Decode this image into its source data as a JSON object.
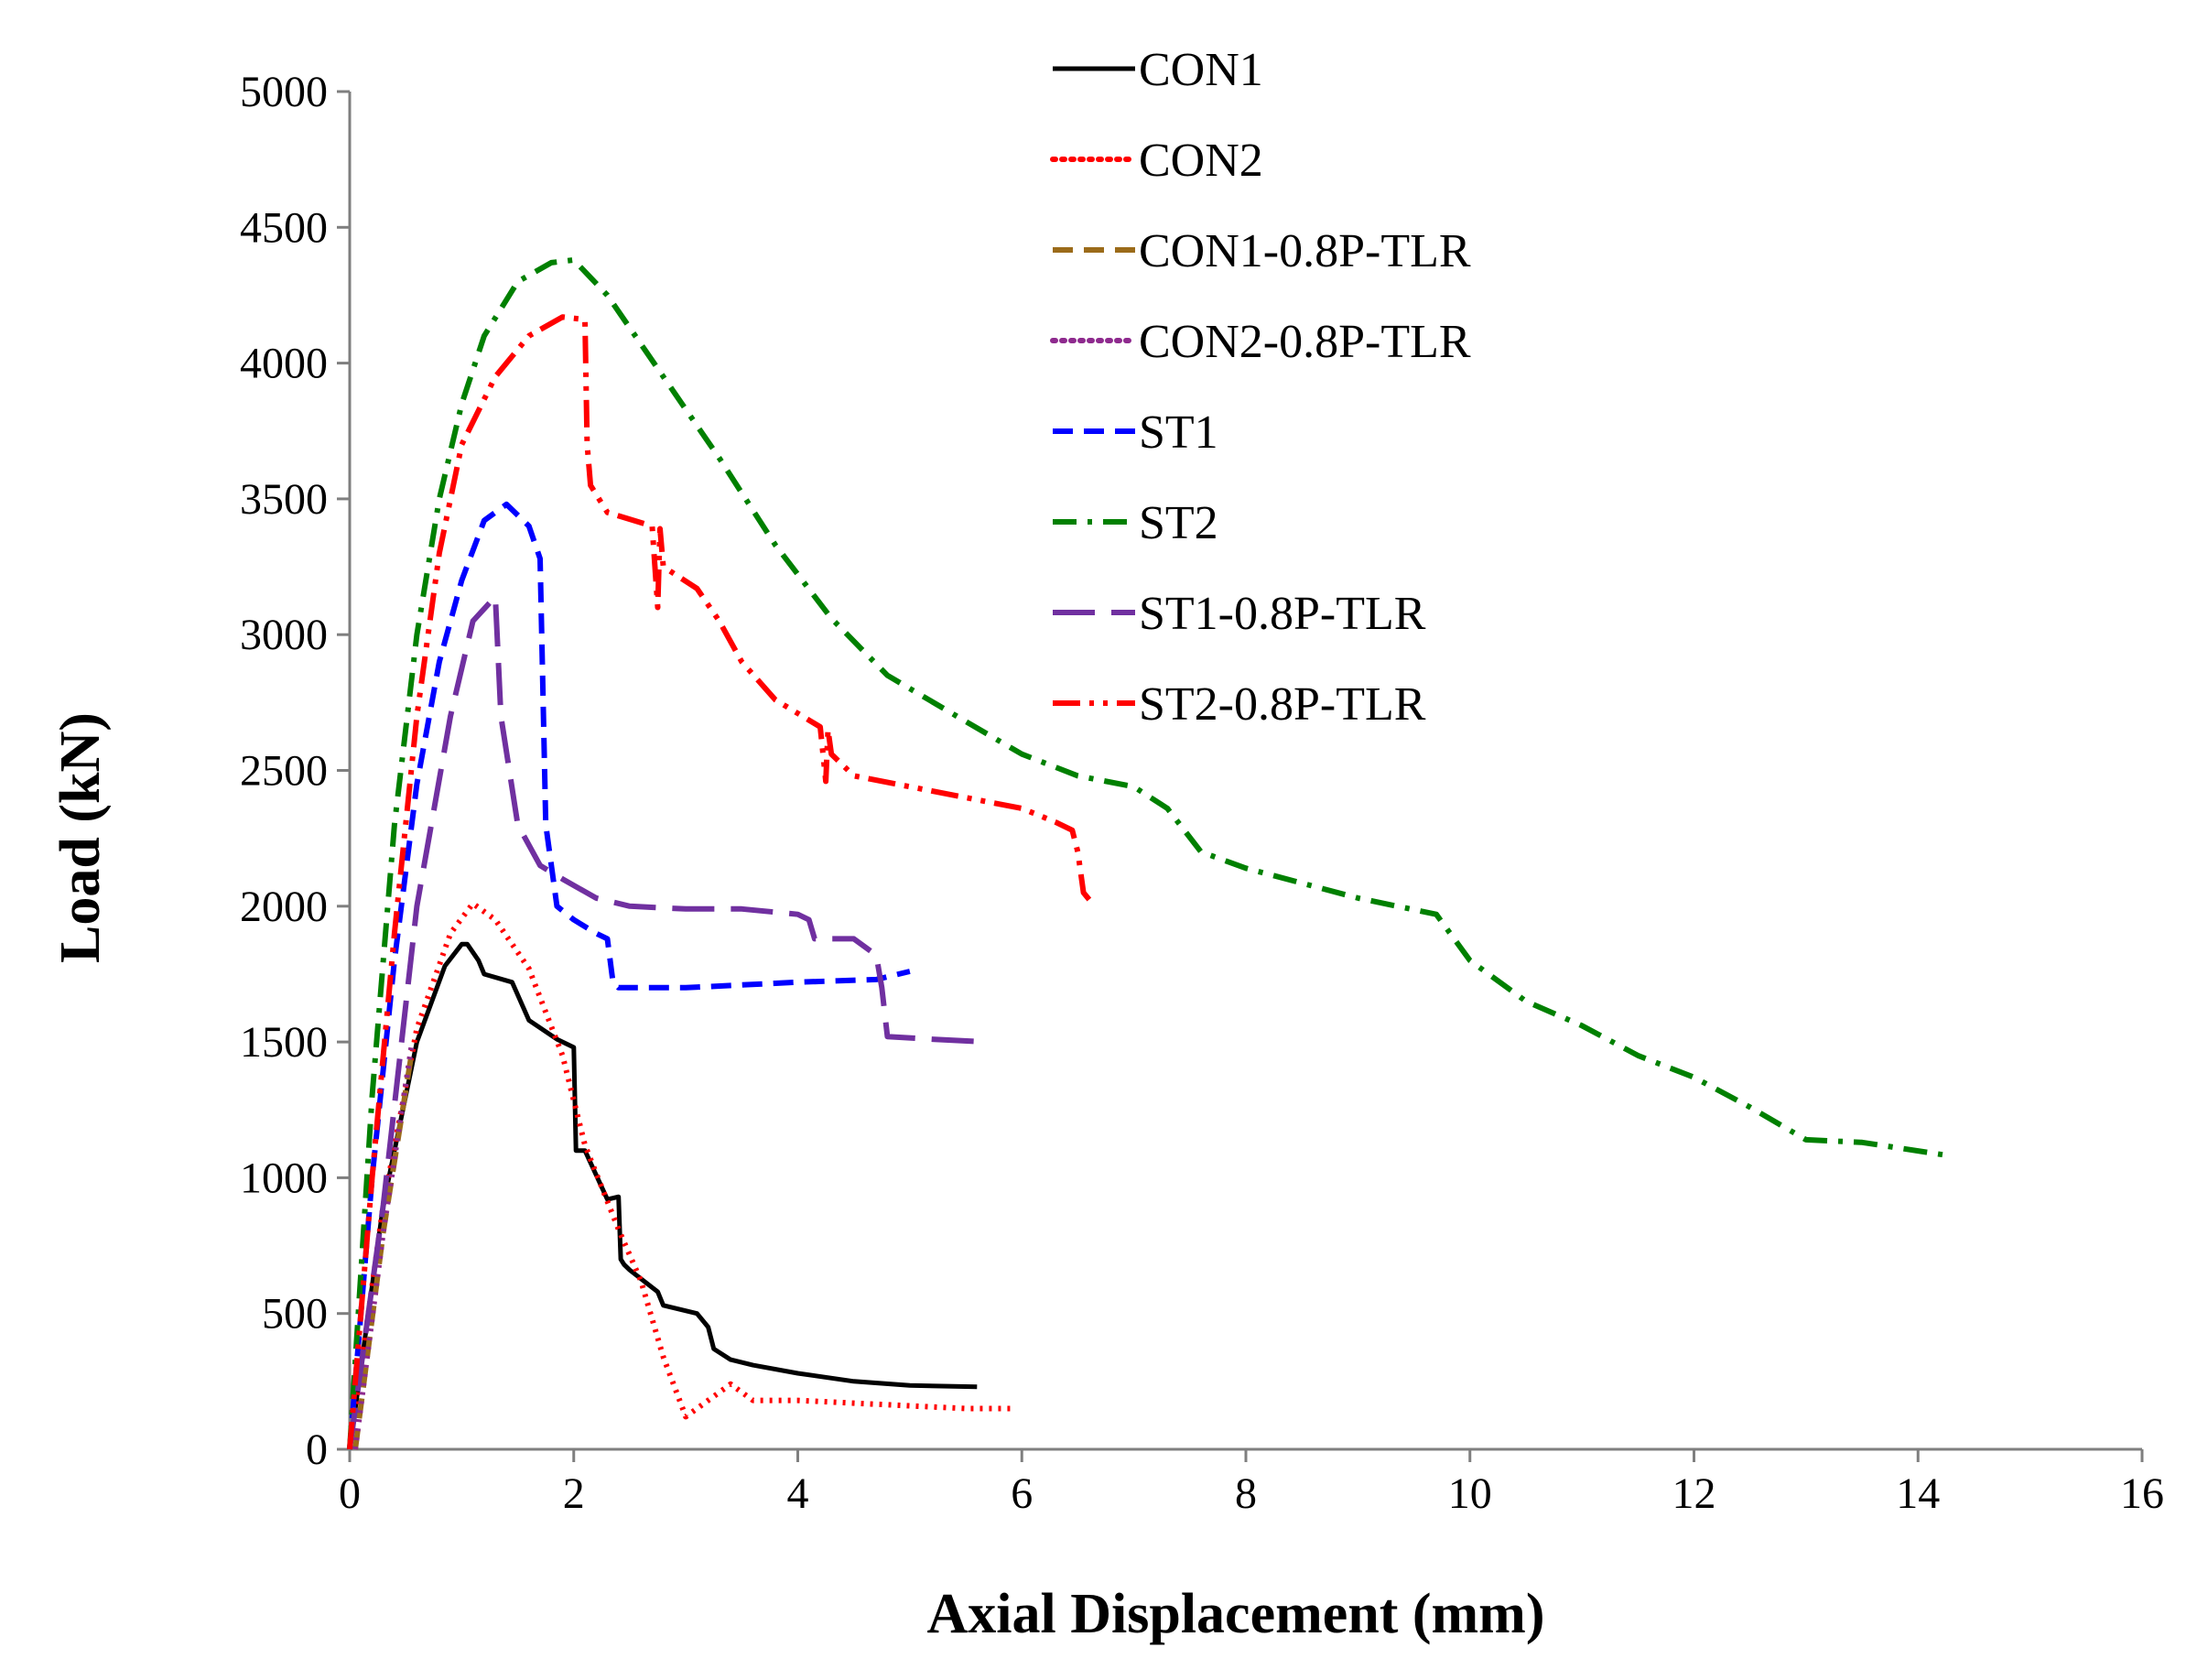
{
  "chart_data": {
    "type": "line",
    "title": "",
    "xlabel": "Axial Displacement (mm)",
    "ylabel": "Load (kN)",
    "xlim": [
      0,
      16
    ],
    "ylim": [
      0,
      5000
    ],
    "xticks": [
      "0",
      "2",
      "4",
      "6",
      "8",
      "10",
      "12",
      "14",
      "16"
    ],
    "yticks": [
      "0",
      "500",
      "1000",
      "1500",
      "2000",
      "2500",
      "3000",
      "3500",
      "4000",
      "4500",
      "5000"
    ],
    "legend_position": "top-right",
    "series": [
      {
        "name": "CON1",
        "color": "#000000",
        "dash": "solid",
        "x": [
          0,
          0.3,
          0.6,
          0.85,
          1.0,
          1.05,
          1.15,
          1.2,
          1.45,
          1.6,
          1.85,
          2.0,
          2.02,
          2.05,
          2.1,
          2.3,
          2.4,
          2.42,
          2.45,
          2.5,
          2.75,
          2.8,
          3.1,
          3.2,
          3.25,
          3.4,
          3.6,
          4.0,
          4.5,
          5.0,
          5.6
        ],
        "y": [
          0,
          900,
          1500,
          1780,
          1860,
          1860,
          1800,
          1750,
          1720,
          1580,
          1510,
          1480,
          1100,
          1100,
          1100,
          920,
          930,
          700,
          680,
          660,
          580,
          530,
          500,
          450,
          370,
          330,
          310,
          280,
          250,
          235,
          230
        ]
      },
      {
        "name": "CON2",
        "color": "#ff0000",
        "dash": "dotted",
        "x": [
          0,
          0.3,
          0.6,
          0.9,
          1.1,
          1.3,
          1.6,
          1.9,
          2.1,
          2.4,
          2.6,
          2.8,
          3.0,
          3.2,
          3.4,
          3.6,
          4.0,
          4.5,
          5.0,
          5.5,
          5.9
        ],
        "y": [
          0,
          900,
          1550,
          1900,
          2010,
          1950,
          1770,
          1450,
          1120,
          810,
          620,
          340,
          120,
          180,
          240,
          180,
          180,
          170,
          160,
          150,
          150
        ]
      },
      {
        "name": "CON1-0.8P-TLR",
        "color": "#9b6b1a",
        "dash": "dashed",
        "x": [
          0.05,
          0.3,
          0.55
        ],
        "y": [
          0,
          800,
          1450
        ]
      },
      {
        "name": "CON2-0.8P-TLR",
        "color": "#8e2a8e",
        "dash": "dotted",
        "x": [
          0.05,
          0.3,
          0.55
        ],
        "y": [
          0,
          800,
          1480
        ]
      },
      {
        "name": "ST1",
        "color": "#0000ff",
        "dash": "dashed",
        "x": [
          0,
          0.2,
          0.4,
          0.6,
          0.8,
          1.0,
          1.2,
          1.4,
          1.6,
          1.7,
          1.75,
          1.85,
          2.0,
          2.2,
          2.3,
          2.35,
          2.4,
          3.0,
          4.0,
          4.7,
          5.0
        ],
        "y": [
          0,
          1000,
          1800,
          2450,
          2900,
          3200,
          3420,
          3480,
          3400,
          3280,
          2300,
          2000,
          1950,
          1900,
          1880,
          1720,
          1700,
          1700,
          1720,
          1730,
          1760
        ]
      },
      {
        "name": "ST2",
        "color": "#008000",
        "dash": "dashdot",
        "x": [
          0,
          0.2,
          0.4,
          0.6,
          0.8,
          1.0,
          1.2,
          1.5,
          1.8,
          2.0,
          2.3,
          2.8,
          3.3,
          3.8,
          4.3,
          4.8,
          5.5,
          6.0,
          6.5,
          7.0,
          7.3,
          7.6,
          8.0,
          9.0,
          9.7,
          10.0,
          10.5,
          11.0,
          11.5,
          12.0,
          12.5,
          13.0,
          13.5,
          14.3
        ],
        "y": [
          0,
          1300,
          2300,
          3000,
          3500,
          3850,
          4100,
          4300,
          4370,
          4380,
          4250,
          3950,
          3650,
          3330,
          3060,
          2850,
          2680,
          2560,
          2480,
          2440,
          2360,
          2200,
          2140,
          2030,
          1970,
          1800,
          1650,
          1560,
          1450,
          1370,
          1260,
          1140,
          1130,
          1080
        ]
      },
      {
        "name": "ST1-0.8P-TLR",
        "color": "#7030a0",
        "dash": "longdash",
        "x": [
          0,
          0.3,
          0.6,
          0.9,
          1.1,
          1.3,
          1.35,
          1.5,
          1.7,
          1.9,
          2.2,
          2.5,
          3.0,
          3.5,
          4.0,
          4.1,
          4.15,
          4.5,
          4.7,
          4.75,
          4.8,
          5.2,
          5.7
        ],
        "y": [
          0,
          900,
          2000,
          2700,
          3050,
          3140,
          2700,
          2300,
          2150,
          2100,
          2030,
          2000,
          1990,
          1990,
          1970,
          1950,
          1880,
          1880,
          1820,
          1700,
          1520,
          1510,
          1500
        ]
      },
      {
        "name": "ST2-0.8P-TLR",
        "color": "#ff0000",
        "dash": "dashdotdot",
        "x": [
          0,
          0.2,
          0.4,
          0.6,
          0.8,
          1.0,
          1.3,
          1.6,
          1.9,
          2.1,
          2.12,
          2.15,
          2.3,
          2.7,
          2.75,
          2.77,
          2.8,
          3.1,
          3.3,
          3.5,
          3.8,
          4.2,
          4.25,
          4.27,
          4.3,
          4.5,
          5.0,
          5.5,
          6.0,
          6.3,
          6.45,
          6.5,
          6.55,
          6.65
        ],
        "y": [
          0,
          1000,
          1900,
          2700,
          3300,
          3700,
          3950,
          4100,
          4170,
          4160,
          3700,
          3550,
          3450,
          3400,
          3100,
          3390,
          3250,
          3170,
          3050,
          2900,
          2760,
          2660,
          2460,
          2650,
          2560,
          2480,
          2440,
          2400,
          2360,
          2310,
          2280,
          2200,
          2050,
          2000
        ]
      }
    ]
  }
}
